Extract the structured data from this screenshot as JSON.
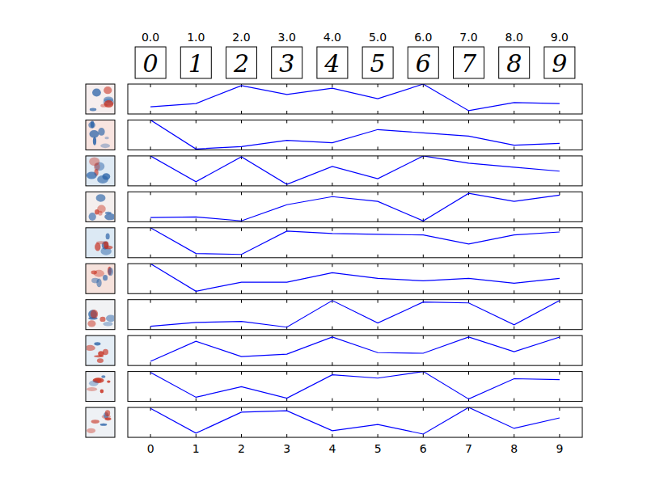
{
  "column_labels": [
    "0.0",
    "1.0",
    "2.0",
    "3.0",
    "4.0",
    "5.0",
    "6.0",
    "7.0",
    "8.0",
    "9.0"
  ],
  "digit_images": [
    "0",
    "1",
    "2",
    "3",
    "4",
    "5",
    "6",
    "7",
    "8",
    "9"
  ],
  "chart_data": [
    {
      "type": "line",
      "x": [
        0,
        1,
        2,
        3,
        4,
        5,
        6,
        7,
        8,
        9
      ],
      "values": [
        0.24,
        0.35,
        0.95,
        0.65,
        0.86,
        0.51,
        1.0,
        0.11,
        0.38,
        0.35
      ],
      "color": "#0000ff",
      "xlim": [
        -0.5,
        9.5
      ],
      "ylim": [
        0,
        1
      ],
      "xticks": [
        0,
        1,
        2,
        3,
        4,
        5,
        6,
        7,
        8,
        9
      ],
      "tick_labels": false
    },
    {
      "type": "line",
      "x": [
        0,
        1,
        2,
        3,
        4,
        5,
        6,
        7,
        8,
        9
      ],
      "values": [
        1.0,
        0.03,
        0.11,
        0.32,
        0.24,
        0.68,
        0.57,
        0.46,
        0.16,
        0.22
      ],
      "color": "#0000ff",
      "xlim": [
        -0.5,
        9.5
      ],
      "ylim": [
        0,
        1
      ],
      "xticks": [
        0,
        1,
        2,
        3,
        4,
        5,
        6,
        7,
        8,
        9
      ],
      "tick_labels": false
    },
    {
      "type": "line",
      "x": [
        0,
        1,
        2,
        3,
        4,
        5,
        6,
        7,
        8,
        9
      ],
      "values": [
        1.0,
        0.14,
        0.97,
        0.05,
        0.65,
        0.24,
        1.0,
        0.76,
        0.62,
        0.49
      ],
      "color": "#0000ff",
      "xlim": [
        -0.5,
        9.5
      ],
      "ylim": [
        0,
        1
      ],
      "xticks": [
        0,
        1,
        2,
        3,
        4,
        5,
        6,
        7,
        8,
        9
      ],
      "tick_labels": false
    },
    {
      "type": "line",
      "x": [
        0,
        1,
        2,
        3,
        4,
        5,
        6,
        7,
        8,
        9
      ],
      "values": [
        0.14,
        0.16,
        0.03,
        0.57,
        0.84,
        0.68,
        0.03,
        0.95,
        0.68,
        0.89
      ],
      "color": "#0000ff",
      "xlim": [
        -0.5,
        9.5
      ],
      "ylim": [
        0,
        1
      ],
      "xticks": [
        0,
        1,
        2,
        3,
        4,
        5,
        6,
        7,
        8,
        9
      ],
      "tick_labels": false
    },
    {
      "type": "line",
      "x": [
        0,
        1,
        2,
        3,
        4,
        5,
        6,
        7,
        8,
        9
      ],
      "values": [
        1.0,
        0.14,
        0.11,
        0.89,
        0.81,
        0.78,
        0.76,
        0.46,
        0.76,
        0.86
      ],
      "color": "#0000ff",
      "xlim": [
        -0.5,
        9.5
      ],
      "ylim": [
        0,
        1
      ],
      "xticks": [
        0,
        1,
        2,
        3,
        4,
        5,
        6,
        7,
        8,
        9
      ],
      "tick_labels": false
    },
    {
      "type": "line",
      "x": [
        0,
        1,
        2,
        3,
        4,
        5,
        6,
        7,
        8,
        9
      ],
      "values": [
        1.0,
        0.08,
        0.38,
        0.38,
        0.7,
        0.51,
        0.43,
        0.51,
        0.35,
        0.51
      ],
      "color": "#0000ff",
      "xlim": [
        -0.5,
        9.5
      ],
      "ylim": [
        0,
        1
      ],
      "xticks": [
        0,
        1,
        2,
        3,
        4,
        5,
        6,
        7,
        8,
        9
      ],
      "tick_labels": false
    },
    {
      "type": "line",
      "x": [
        0,
        1,
        2,
        3,
        4,
        5,
        6,
        7,
        8,
        9
      ],
      "values": [
        0.11,
        0.24,
        0.27,
        0.08,
        0.97,
        0.22,
        0.92,
        0.89,
        0.16,
        0.97
      ],
      "color": "#0000ff",
      "xlim": [
        -0.5,
        9.5
      ],
      "ylim": [
        0,
        1
      ],
      "xticks": [
        0,
        1,
        2,
        3,
        4,
        5,
        6,
        7,
        8,
        9
      ],
      "tick_labels": false
    },
    {
      "type": "line",
      "x": [
        0,
        1,
        2,
        3,
        4,
        5,
        6,
        7,
        8,
        9
      ],
      "values": [
        0.14,
        0.81,
        0.3,
        0.38,
        0.95,
        0.43,
        0.41,
        0.95,
        0.46,
        0.95
      ],
      "color": "#0000ff",
      "xlim": [
        -0.5,
        9.5
      ],
      "ylim": [
        0,
        1
      ],
      "xticks": [
        0,
        1,
        2,
        3,
        4,
        5,
        6,
        7,
        8,
        9
      ],
      "tick_labels": false
    },
    {
      "type": "line",
      "x": [
        0,
        1,
        2,
        3,
        4,
        5,
        6,
        7,
        8,
        9
      ],
      "values": [
        0.97,
        0.14,
        0.49,
        0.11,
        0.89,
        0.78,
        1.0,
        0.08,
        0.76,
        0.73
      ],
      "color": "#0000ff",
      "xlim": [
        -0.5,
        9.5
      ],
      "ylim": [
        0,
        1
      ],
      "xticks": [
        0,
        1,
        2,
        3,
        4,
        5,
        6,
        7,
        8,
        9
      ],
      "tick_labels": false
    },
    {
      "type": "line",
      "x": [
        0,
        1,
        2,
        3,
        4,
        5,
        6,
        7,
        8,
        9
      ],
      "values": [
        0.97,
        0.14,
        0.84,
        0.89,
        0.22,
        0.43,
        0.11,
        1.0,
        0.3,
        0.65
      ],
      "color": "#0000ff",
      "xlim": [
        -0.5,
        9.5
      ],
      "ylim": [
        0,
        1
      ],
      "xticks": [
        0,
        1,
        2,
        3,
        4,
        5,
        6,
        7,
        8,
        9
      ],
      "tick_labels": "x"
    }
  ]
}
